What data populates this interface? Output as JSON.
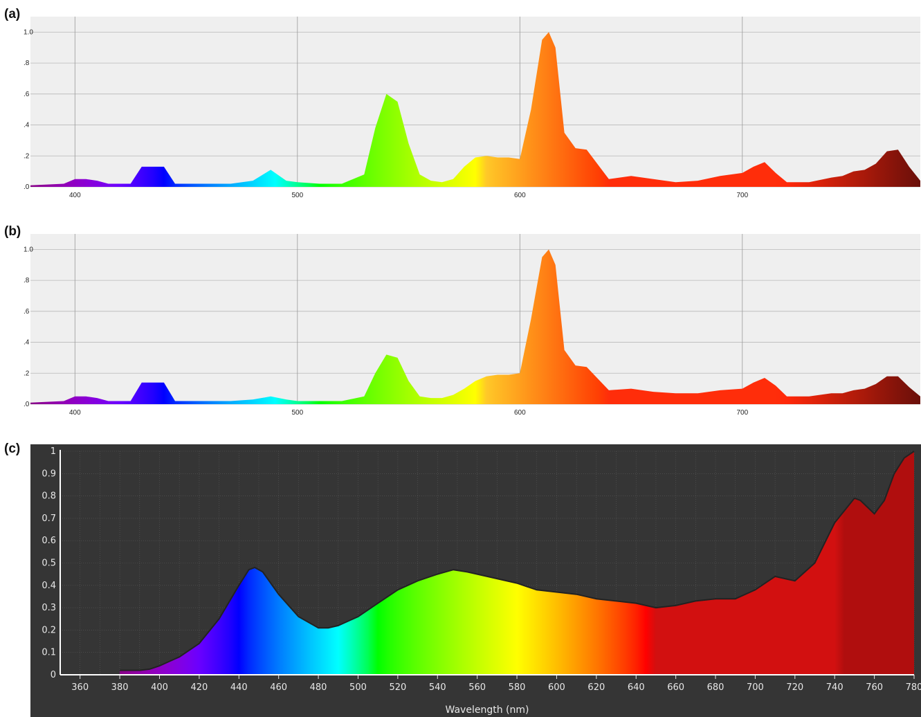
{
  "panel_labels": [
    "(a)",
    "(b)",
    "(c)"
  ],
  "chart_data": [
    {
      "type": "area",
      "panel": "(a)",
      "xlabel": "",
      "ylabel": "",
      "xlim": [
        380,
        780
      ],
      "ylim": [
        0,
        1.1
      ],
      "x_ticks": [
        "400",
        "500",
        "600",
        "700"
      ],
      "y_ticks": [
        ".0",
        ".2",
        ".4",
        ".6",
        ".8",
        "1.0"
      ],
      "grid": true,
      "x": [
        380,
        395,
        400,
        405,
        410,
        415,
        425,
        430,
        440,
        445,
        450,
        460,
        470,
        480,
        488,
        495,
        500,
        510,
        520,
        530,
        535,
        540,
        545,
        550,
        555,
        560,
        565,
        570,
        575,
        580,
        585,
        590,
        595,
        600,
        605,
        610,
        613,
        616,
        620,
        625,
        630,
        640,
        650,
        660,
        670,
        680,
        690,
        700,
        705,
        710,
        715,
        720,
        730,
        740,
        745,
        750,
        755,
        760,
        765,
        770,
        775,
        780
      ],
      "y": [
        0.01,
        0.02,
        0.05,
        0.05,
        0.04,
        0.02,
        0.02,
        0.13,
        0.13,
        0.02,
        0.02,
        0.02,
        0.02,
        0.04,
        0.11,
        0.04,
        0.03,
        0.02,
        0.02,
        0.08,
        0.38,
        0.6,
        0.55,
        0.28,
        0.08,
        0.04,
        0.03,
        0.05,
        0.13,
        0.19,
        0.2,
        0.19,
        0.19,
        0.18,
        0.5,
        0.95,
        1.0,
        0.9,
        0.35,
        0.25,
        0.24,
        0.05,
        0.07,
        0.05,
        0.03,
        0.04,
        0.07,
        0.09,
        0.13,
        0.16,
        0.09,
        0.03,
        0.03,
        0.06,
        0.07,
        0.1,
        0.11,
        0.15,
        0.23,
        0.24,
        0.13,
        0.04
      ]
    },
    {
      "type": "area",
      "panel": "(b)",
      "xlabel": "",
      "ylabel": "",
      "xlim": [
        380,
        780
      ],
      "ylim": [
        0,
        1.1
      ],
      "x_ticks": [
        "400",
        "500",
        "600",
        "700"
      ],
      "y_ticks": [
        ".0",
        ".2",
        ".4",
        ".6",
        ".8",
        "1.0"
      ],
      "grid": true,
      "x": [
        380,
        395,
        400,
        405,
        410,
        415,
        425,
        430,
        440,
        445,
        450,
        460,
        470,
        480,
        488,
        495,
        500,
        510,
        520,
        530,
        535,
        540,
        545,
        550,
        555,
        560,
        565,
        570,
        575,
        580,
        585,
        590,
        595,
        600,
        605,
        610,
        613,
        616,
        620,
        625,
        630,
        640,
        650,
        660,
        670,
        680,
        690,
        700,
        705,
        710,
        715,
        720,
        730,
        740,
        745,
        750,
        755,
        760,
        765,
        770,
        775,
        780
      ],
      "y": [
        0.01,
        0.02,
        0.05,
        0.05,
        0.04,
        0.02,
        0.02,
        0.14,
        0.14,
        0.02,
        0.02,
        0.02,
        0.02,
        0.03,
        0.05,
        0.03,
        0.02,
        0.02,
        0.02,
        0.05,
        0.2,
        0.32,
        0.3,
        0.15,
        0.05,
        0.04,
        0.04,
        0.06,
        0.1,
        0.15,
        0.18,
        0.19,
        0.19,
        0.2,
        0.55,
        0.95,
        1.0,
        0.9,
        0.35,
        0.25,
        0.24,
        0.09,
        0.1,
        0.08,
        0.07,
        0.07,
        0.09,
        0.1,
        0.14,
        0.17,
        0.12,
        0.05,
        0.05,
        0.07,
        0.07,
        0.09,
        0.1,
        0.13,
        0.18,
        0.18,
        0.11,
        0.05
      ]
    },
    {
      "type": "area",
      "panel": "(c)",
      "xlabel": "Wavelength (nm)",
      "ylabel": "",
      "xlim": [
        350,
        780
      ],
      "ylim": [
        0,
        1
      ],
      "x_ticks": [
        "360",
        "380",
        "400",
        "420",
        "440",
        "460",
        "480",
        "500",
        "520",
        "540",
        "560",
        "580",
        "600",
        "620",
        "640",
        "660",
        "680",
        "700",
        "720",
        "740",
        "760",
        "780"
      ],
      "y_ticks": [
        "0",
        "0.1",
        "0.2",
        "0.3",
        "0.4",
        "0.5",
        "0.6",
        "0.7",
        "0.8",
        "0.9",
        "1"
      ],
      "grid": true,
      "x": [
        380,
        390,
        395,
        400,
        405,
        410,
        420,
        430,
        440,
        445,
        448,
        452,
        460,
        470,
        480,
        485,
        490,
        500,
        510,
        520,
        530,
        540,
        548,
        555,
        565,
        580,
        590,
        600,
        610,
        620,
        630,
        640,
        650,
        660,
        670,
        680,
        690,
        700,
        710,
        715,
        720,
        730,
        740,
        750,
        753,
        760,
        765,
        770,
        775,
        780
      ],
      "y": [
        0.02,
        0.02,
        0.025,
        0.04,
        0.06,
        0.08,
        0.14,
        0.25,
        0.4,
        0.47,
        0.48,
        0.46,
        0.36,
        0.26,
        0.21,
        0.21,
        0.22,
        0.26,
        0.32,
        0.38,
        0.42,
        0.45,
        0.47,
        0.46,
        0.44,
        0.41,
        0.38,
        0.37,
        0.36,
        0.34,
        0.33,
        0.32,
        0.3,
        0.31,
        0.33,
        0.34,
        0.34,
        0.38,
        0.44,
        0.43,
        0.42,
        0.5,
        0.68,
        0.79,
        0.78,
        0.72,
        0.78,
        0.9,
        0.97,
        1.0
      ]
    }
  ]
}
